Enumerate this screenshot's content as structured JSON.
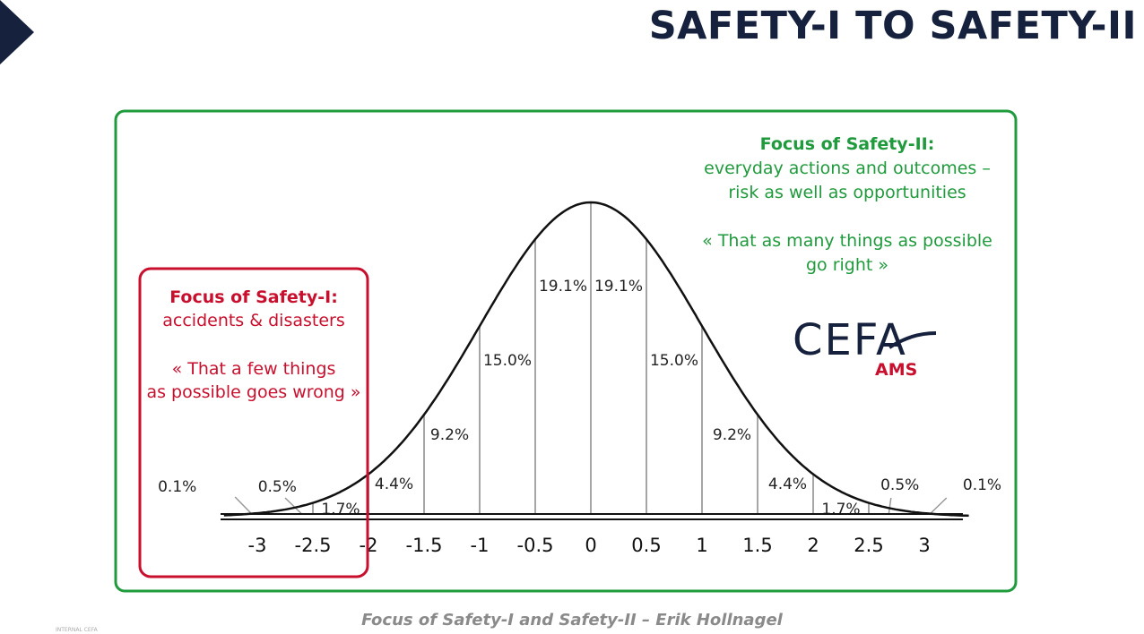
{
  "title": "SAFETY-I TO SAFETY-II",
  "safety2": {
    "heading": "Focus of Safety-II:",
    "line1": "everyday actions and outcomes –",
    "line2": "risk as well as opportunities",
    "quote1": "« That as many things as possible",
    "quote2": "go right »"
  },
  "safety1": {
    "heading": "Focus of Safety-I:",
    "line1": "accidents & disasters",
    "quote1": "« That a few things",
    "quote2": "as possible goes wrong »"
  },
  "logo": {
    "main": "CEFA",
    "sub": "AMS"
  },
  "caption": "Focus of Safety-I and Safety-II – Erik Hollnagel",
  "footer_note": "INTERNAL CEFA",
  "colors": {
    "navy": "#16213e",
    "green": "#1f9a3c",
    "red": "#c8102e"
  },
  "chart_data": {
    "type": "area",
    "description_type": "normal distribution curve",
    "x_ticks": [
      -3,
      -2.5,
      -2,
      -1.5,
      -1,
      -0.5,
      0,
      0.5,
      1,
      1.5,
      2,
      2.5,
      3
    ],
    "x_tick_labels": [
      "-3",
      "-2.5",
      "-2",
      "-1.5",
      "-1",
      "-0.5",
      "0",
      "0.5",
      "1",
      "1.5",
      "2",
      "2.5",
      "3"
    ],
    "xlim": [
      -3.3,
      3.4
    ],
    "segments": [
      {
        "from": -3.5,
        "to": -3,
        "label": "0.1%",
        "value": 0.1
      },
      {
        "from": -3,
        "to": -2.5,
        "label": "0.5%",
        "value": 0.5
      },
      {
        "from": -2.5,
        "to": -2,
        "label": "1.7%",
        "value": 1.7
      },
      {
        "from": -2,
        "to": -1.5,
        "label": "4.4%",
        "value": 4.4
      },
      {
        "from": -1.5,
        "to": -1,
        "label": "9.2%",
        "value": 9.2
      },
      {
        "from": -1,
        "to": -0.5,
        "label": "15.0%",
        "value": 15.0
      },
      {
        "from": -0.5,
        "to": 0,
        "label": "19.1%",
        "value": 19.1
      },
      {
        "from": 0,
        "to": 0.5,
        "label": "19.1%",
        "value": 19.1
      },
      {
        "from": 0.5,
        "to": 1,
        "label": "15.0%",
        "value": 15.0
      },
      {
        "from": 1,
        "to": 1.5,
        "label": "9.2%",
        "value": 9.2
      },
      {
        "from": 1.5,
        "to": 2,
        "label": "4.4%",
        "value": 4.4
      },
      {
        "from": 2,
        "to": 2.5,
        "label": "1.7%",
        "value": 1.7
      },
      {
        "from": 2.5,
        "to": 3,
        "label": "0.5%",
        "value": 0.5
      },
      {
        "from": 3,
        "to": 3.5,
        "label": "0.1%",
        "value": 0.1
      }
    ]
  }
}
